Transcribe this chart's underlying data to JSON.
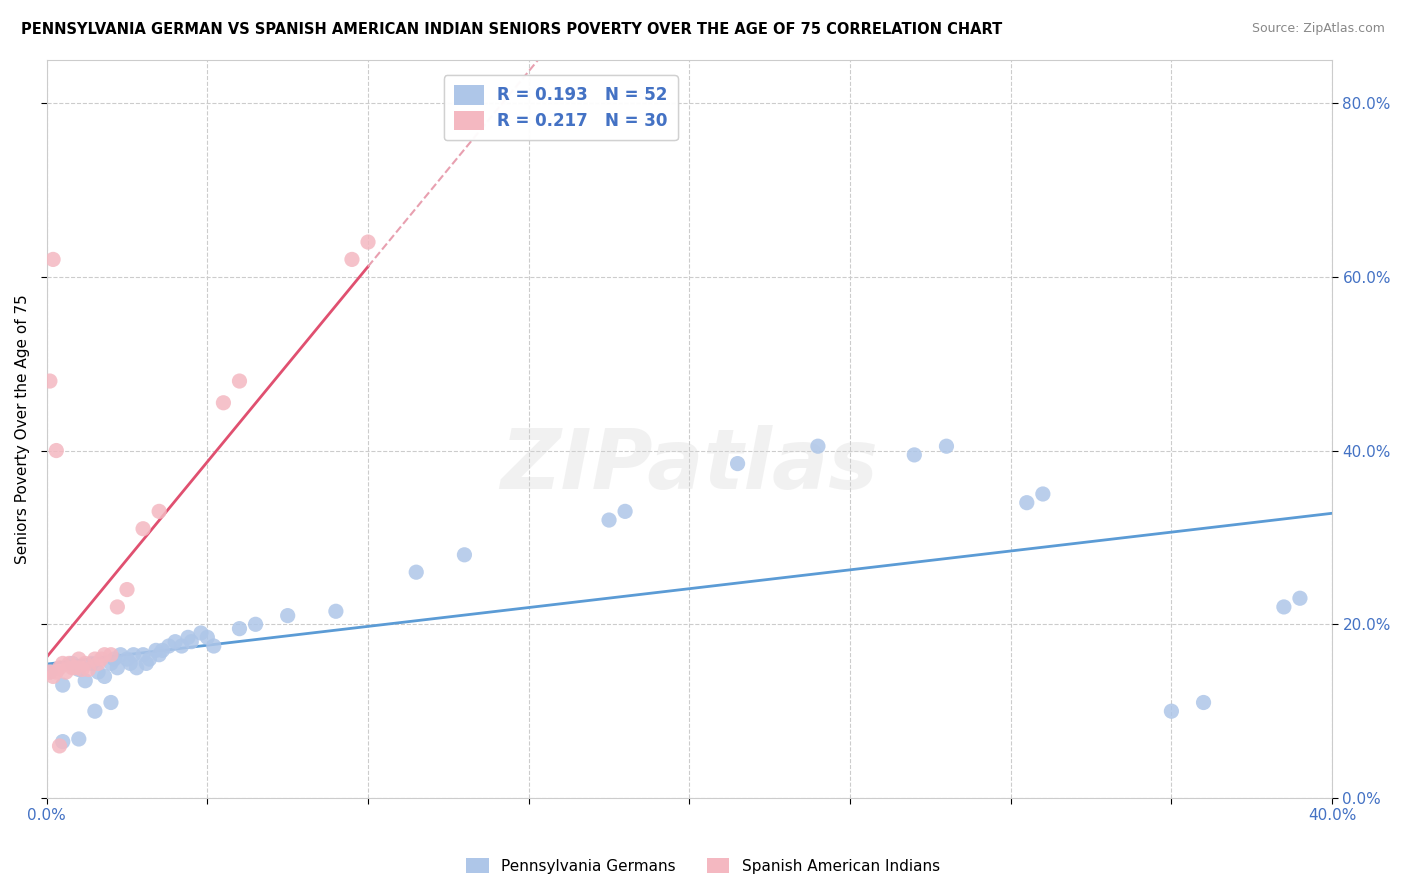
{
  "title": "PENNSYLVANIA GERMAN VS SPANISH AMERICAN INDIAN SENIORS POVERTY OVER THE AGE OF 75 CORRELATION CHART",
  "source": "Source: ZipAtlas.com",
  "ylabel": "Seniors Poverty Over the Age of 75",
  "xlim": [
    0.0,
    0.4
  ],
  "ylim": [
    0.0,
    0.85
  ],
  "x_ticks": [
    0.0,
    0.05,
    0.1,
    0.15,
    0.2,
    0.25,
    0.3,
    0.35,
    0.4
  ],
  "y_ticks_right": [
    0.0,
    0.2,
    0.4,
    0.6,
    0.8
  ],
  "color_german": "#aec6e8",
  "color_spanish": "#f4b8c1",
  "color_german_line": "#5b9bd5",
  "color_spanish_line": "#e05070",
  "color_spanish_dash": "#e8a0b0",
  "background": "#ffffff",
  "watermark": "ZIPatlas",
  "german_x": [
    0.001,
    0.005,
    0.008,
    0.01,
    0.012,
    0.014,
    0.016,
    0.018,
    0.02,
    0.021,
    0.022,
    0.023,
    0.025,
    0.026,
    0.027,
    0.028,
    0.03,
    0.031,
    0.032,
    0.034,
    0.035,
    0.036,
    0.038,
    0.04,
    0.042,
    0.044,
    0.045,
    0.048,
    0.05,
    0.052,
    0.06,
    0.065,
    0.075,
    0.09,
    0.115,
    0.13,
    0.175,
    0.18,
    0.215,
    0.24,
    0.27,
    0.28,
    0.305,
    0.31,
    0.35,
    0.36,
    0.385,
    0.39,
    0.005,
    0.01,
    0.015,
    0.02
  ],
  "german_y": [
    0.145,
    0.13,
    0.155,
    0.148,
    0.135,
    0.155,
    0.145,
    0.14,
    0.155,
    0.16,
    0.15,
    0.165,
    0.16,
    0.155,
    0.165,
    0.15,
    0.165,
    0.155,
    0.16,
    0.17,
    0.165,
    0.17,
    0.175,
    0.18,
    0.175,
    0.185,
    0.18,
    0.19,
    0.185,
    0.175,
    0.195,
    0.2,
    0.21,
    0.215,
    0.26,
    0.28,
    0.32,
    0.33,
    0.385,
    0.405,
    0.395,
    0.405,
    0.34,
    0.35,
    0.1,
    0.11,
    0.22,
    0.23,
    0.065,
    0.068,
    0.1,
    0.11
  ],
  "spanish_x": [
    0.001,
    0.002,
    0.003,
    0.004,
    0.005,
    0.006,
    0.007,
    0.008,
    0.009,
    0.01,
    0.011,
    0.012,
    0.013,
    0.015,
    0.016,
    0.017,
    0.018,
    0.02,
    0.022,
    0.025,
    0.03,
    0.035,
    0.055,
    0.06,
    0.095,
    0.1,
    0.001,
    0.002,
    0.003,
    0.004
  ],
  "spanish_y": [
    0.145,
    0.14,
    0.145,
    0.15,
    0.155,
    0.145,
    0.155,
    0.15,
    0.15,
    0.16,
    0.148,
    0.155,
    0.148,
    0.16,
    0.155,
    0.16,
    0.165,
    0.165,
    0.22,
    0.24,
    0.31,
    0.33,
    0.455,
    0.48,
    0.62,
    0.64,
    0.48,
    0.62,
    0.4,
    0.06
  ]
}
